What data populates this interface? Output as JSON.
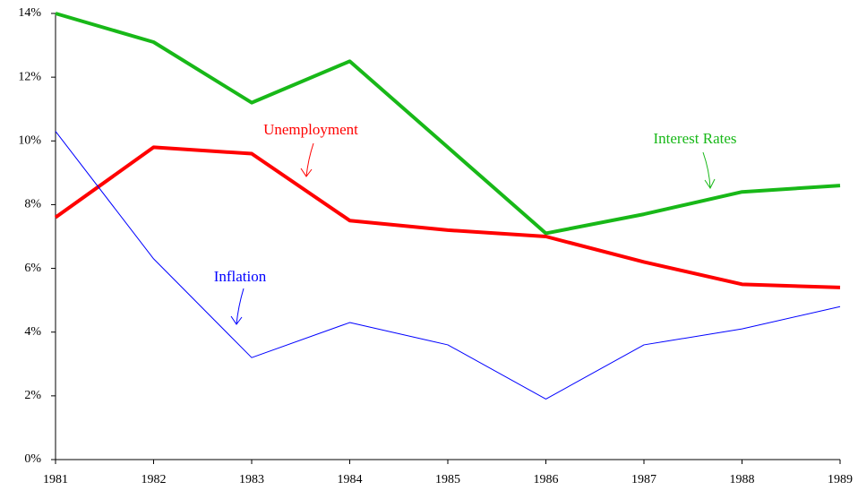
{
  "chart_data": {
    "type": "line",
    "categories": [
      "1981",
      "1982",
      "1983",
      "1984",
      "1985",
      "1986",
      "1987",
      "1988",
      "1989"
    ],
    "series": [
      {
        "name": "Interest Rates",
        "color": "#18b818",
        "values": [
          14.0,
          13.1,
          11.2,
          12.5,
          9.8,
          7.1,
          7.7,
          8.4,
          8.6
        ]
      },
      {
        "name": "Unemployment",
        "color": "#ff0000",
        "values": [
          7.6,
          9.8,
          9.6,
          7.5,
          7.2,
          7.0,
          6.2,
          5.5,
          5.4
        ]
      },
      {
        "name": "Inflation",
        "color": "#0000ff",
        "values": [
          10.3,
          6.3,
          3.2,
          4.3,
          3.6,
          1.9,
          3.6,
          4.1,
          4.8
        ]
      }
    ],
    "ylim": [
      0,
      14
    ],
    "yticks": [
      {
        "value": 0,
        "label": "0%"
      },
      {
        "value": 2,
        "label": "2%"
      },
      {
        "value": 4,
        "label": "4%"
      },
      {
        "value": 6,
        "label": "6%"
      },
      {
        "value": 8,
        "label": "8%"
      },
      {
        "value": 10,
        "label": "10%"
      },
      {
        "value": 12,
        "label": "12%"
      },
      {
        "value": 14,
        "label": "14%"
      }
    ],
    "grid": false
  }
}
